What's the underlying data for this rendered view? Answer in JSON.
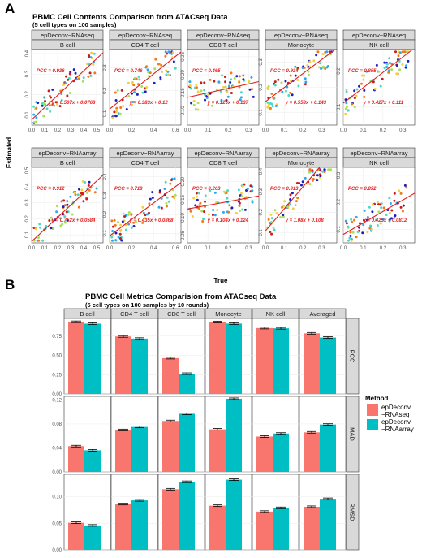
{
  "panel_a": {
    "letter": "A",
    "title": "PBMC Cell Contents Comparison from ATACseq Data",
    "subtitle": "(5 cell types on 100 samples)",
    "xlabel": "True",
    "ylabel": "Estimated",
    "rows": [
      "epDeconv−RNAseq",
      "epDeconv−RNAarray"
    ],
    "colors": {
      "fit_line": "#e31a1c",
      "point_scale": [
        "#1d1dbf",
        "#2fa6ee",
        "#49d9c8",
        "#a8e05a",
        "#f4d03f",
        "#f07a1a",
        "#c81d1d"
      ]
    },
    "cells": [
      {
        "name": "B cell",
        "xticks": [
          "0.0",
          "0.1",
          "0.2",
          "0.3",
          "0.4",
          "0.5"
        ],
        "xlim": [
          0,
          0.55
        ],
        "yticks_rna": [
          "0.1",
          "0.2",
          "0.3",
          "0.4"
        ],
        "ylim_rna": [
          0.05,
          0.42
        ],
        "yticks_arr": [
          "0.1",
          "0.2",
          "0.3",
          "0.4",
          "0.5"
        ],
        "ylim_arr": [
          0.05,
          0.52
        ]
      },
      {
        "name": "CD4 T cell",
        "xticks": [
          "0.0",
          "0.2",
          "0.4",
          "0.6"
        ],
        "xlim": [
          0,
          0.65
        ],
        "yticks_rna": [
          "0.1",
          "0.2",
          "0.3"
        ],
        "ylim_rna": [
          0.05,
          0.38
        ],
        "yticks_arr": [
          "0.1",
          "0.2",
          "0.3",
          "0.4"
        ],
        "ylim_arr": [
          0.05,
          0.45
        ]
      },
      {
        "name": "CD8 T cell",
        "xticks": [
          "0.0",
          "0.1",
          "0.2",
          "0.3"
        ],
        "xlim": [
          0,
          0.35
        ],
        "yticks_rna": [
          "0.10",
          "0.15",
          "0.20",
          "0.25"
        ],
        "ylim_rna": [
          0.06,
          0.27
        ],
        "yticks_arr": [
          "0.05",
          "0.10",
          "0.15",
          "0.20"
        ],
        "ylim_arr": [
          0.03,
          0.24
        ]
      },
      {
        "name": "Monocyte",
        "xticks": [
          "0.0",
          "0.1",
          "0.2",
          "0.3"
        ],
        "xlim": [
          0,
          0.38
        ],
        "yticks_rna": [
          "0.1",
          "0.2",
          "0.3"
        ],
        "ylim_rna": [
          0.05,
          0.35
        ],
        "yticks_arr": [
          "0.1",
          "0.2",
          "0.3",
          "0.4"
        ],
        "ylim_arr": [
          0.05,
          0.42
        ]
      },
      {
        "name": "NK cell",
        "xticks": [
          "0.0",
          "0.1",
          "0.2",
          "0.3"
        ],
        "xlim": [
          0,
          0.36
        ],
        "yticks_rna": [
          "0.1",
          "0.2"
        ],
        "ylim_rna": [
          0.05,
          0.26
        ],
        "yticks_arr": [
          "0.1",
          "0.2",
          "0.3"
        ],
        "ylim_arr": [
          0.05,
          0.33
        ]
      }
    ],
    "stats": [
      [
        {
          "pcc": "PCC = 0.936",
          "eq": "y = 0.597x + 0.0763",
          "slope": 0.597,
          "intercept": 0.0763
        },
        {
          "pcc": "PCC = 0.746",
          "eq": "y = 0.383x + 0.12",
          "slope": 0.383,
          "intercept": 0.12
        },
        {
          "pcc": "PCC = 0.465",
          "eq": "y = 0.125x + 0.137",
          "slope": 0.125,
          "intercept": 0.137
        },
        {
          "pcc": "PCC = 0.934",
          "eq": "y = 0.558x + 0.143",
          "slope": 0.558,
          "intercept": 0.143
        },
        {
          "pcc": "PCC = 0.855",
          "eq": "y = 0.427x + 0.111",
          "slope": 0.427,
          "intercept": 0.111
        }
      ],
      [
        {
          "pcc": "PCC = 0.912",
          "eq": "y = 0.752x + 0.0584",
          "slope": 0.752,
          "intercept": 0.0584
        },
        {
          "pcc": "PCC = 0.718",
          "eq": "y = 0.435x + 0.0868",
          "slope": 0.435,
          "intercept": 0.0868
        },
        {
          "pcc": "PCC = 0.263",
          "eq": "y = 0.104x + 0.124",
          "slope": 0.104,
          "intercept": 0.124
        },
        {
          "pcc": "PCC = 0.913",
          "eq": "y = 1.08x + 0.108",
          "slope": 1.08,
          "intercept": 0.108
        },
        {
          "pcc": "PCC = 0.852",
          "eq": "y = 0.425x + 0.0812",
          "slope": 0.425,
          "intercept": 0.0812
        }
      ]
    ]
  },
  "chart_data": [
    {
      "type": "scatter",
      "title": "PBMC Cell Contents Comparison from ATACseq Data",
      "subtitle": "(5 cell types on 100 samples)",
      "xlabel": "True",
      "ylabel": "Estimated",
      "series": [
        {
          "name": "epDeconv−RNAseq",
          "facets": [
            {
              "cell": "B cell",
              "pcc": 0.936,
              "slope": 0.597,
              "intercept": 0.0763
            },
            {
              "cell": "CD4 T cell",
              "pcc": 0.746,
              "slope": 0.383,
              "intercept": 0.12
            },
            {
              "cell": "CD8 T cell",
              "pcc": 0.465,
              "slope": 0.125,
              "intercept": 0.137
            },
            {
              "cell": "Monocyte",
              "pcc": 0.934,
              "slope": 0.558,
              "intercept": 0.143
            },
            {
              "cell": "NK cell",
              "pcc": 0.855,
              "slope": 0.427,
              "intercept": 0.111
            }
          ]
        },
        {
          "name": "epDeconv−RNAarray",
          "facets": [
            {
              "cell": "B cell",
              "pcc": 0.912,
              "slope": 0.752,
              "intercept": 0.0584
            },
            {
              "cell": "CD4 T cell",
              "pcc": 0.718,
              "slope": 0.435,
              "intercept": 0.0868
            },
            {
              "cell": "CD8 T cell",
              "pcc": 0.263,
              "slope": 0.104,
              "intercept": 0.124
            },
            {
              "cell": "Monocyte",
              "pcc": 0.913,
              "slope": 1.08,
              "intercept": 0.108
            },
            {
              "cell": "NK cell",
              "pcc": 0.852,
              "slope": 0.425,
              "intercept": 0.0812
            }
          ]
        }
      ]
    },
    {
      "type": "bar",
      "title": "PBMC Cell Metrics Comparision from ATACseq Data",
      "subtitle": "(5 cell types on 100 samples by 10 rounds)",
      "categories": [
        "B cell",
        "CD4 T cell",
        "CD8 T cell",
        "Monocyte",
        "NK cell",
        "Averaged"
      ],
      "legend_title": "Method",
      "legend_placement": "right",
      "series": [
        {
          "name": "epDeconv\n−RNAseq",
          "color": "#f8766d"
        },
        {
          "name": "epDeconv\n−RNAarray",
          "color": "#00bfc4"
        }
      ],
      "metrics": [
        {
          "name": "PCC",
          "yticks": [
            "0.00",
            "0.25",
            "0.50",
            "0.75"
          ],
          "ylim": [
            0,
            0.98
          ],
          "values": {
            "epDeconv−RNAseq": [
              0.936,
              0.746,
              0.465,
              0.934,
              0.855,
              0.787
            ],
            "epDeconv−RNAarray": [
              0.912,
              0.718,
              0.263,
              0.913,
              0.852,
              0.732
            ]
          }
        },
        {
          "name": "MAD",
          "yticks": [
            "0.00",
            "0.04",
            "0.08",
            "0.12"
          ],
          "ylim": [
            0,
            0.126
          ],
          "values": {
            "epDeconv−RNAseq": [
              0.043,
              0.07,
              0.085,
              0.071,
              0.059,
              0.066
            ],
            "epDeconv−RNAarray": [
              0.036,
              0.075,
              0.097,
              0.122,
              0.064,
              0.079
            ]
          }
        },
        {
          "name": "RMSD",
          "yticks": [
            "0.00",
            "0.05",
            "0.10"
          ],
          "ylim": [
            0,
            0.142
          ],
          "values": {
            "epDeconv−RNAseq": [
              0.051,
              0.086,
              0.114,
              0.083,
              0.072,
              0.081
            ],
            "epDeconv−RNAarray": [
              0.046,
              0.093,
              0.128,
              0.132,
              0.079,
              0.096
            ]
          }
        }
      ]
    }
  ],
  "panel_b": {
    "letter": "B",
    "title": "PBMC Cell Metrics Comparision from ATACseq Data",
    "subtitle": "(5 cell types on 100 samples by 10 rounds)",
    "legend_title": "Method",
    "legend_items": [
      {
        "line1": "epDeconv",
        "line2": "−RNAseq",
        "color": "#f8766d"
      },
      {
        "line1": "epDeconv",
        "line2": "−RNAarray",
        "color": "#00bfc4"
      }
    ]
  }
}
